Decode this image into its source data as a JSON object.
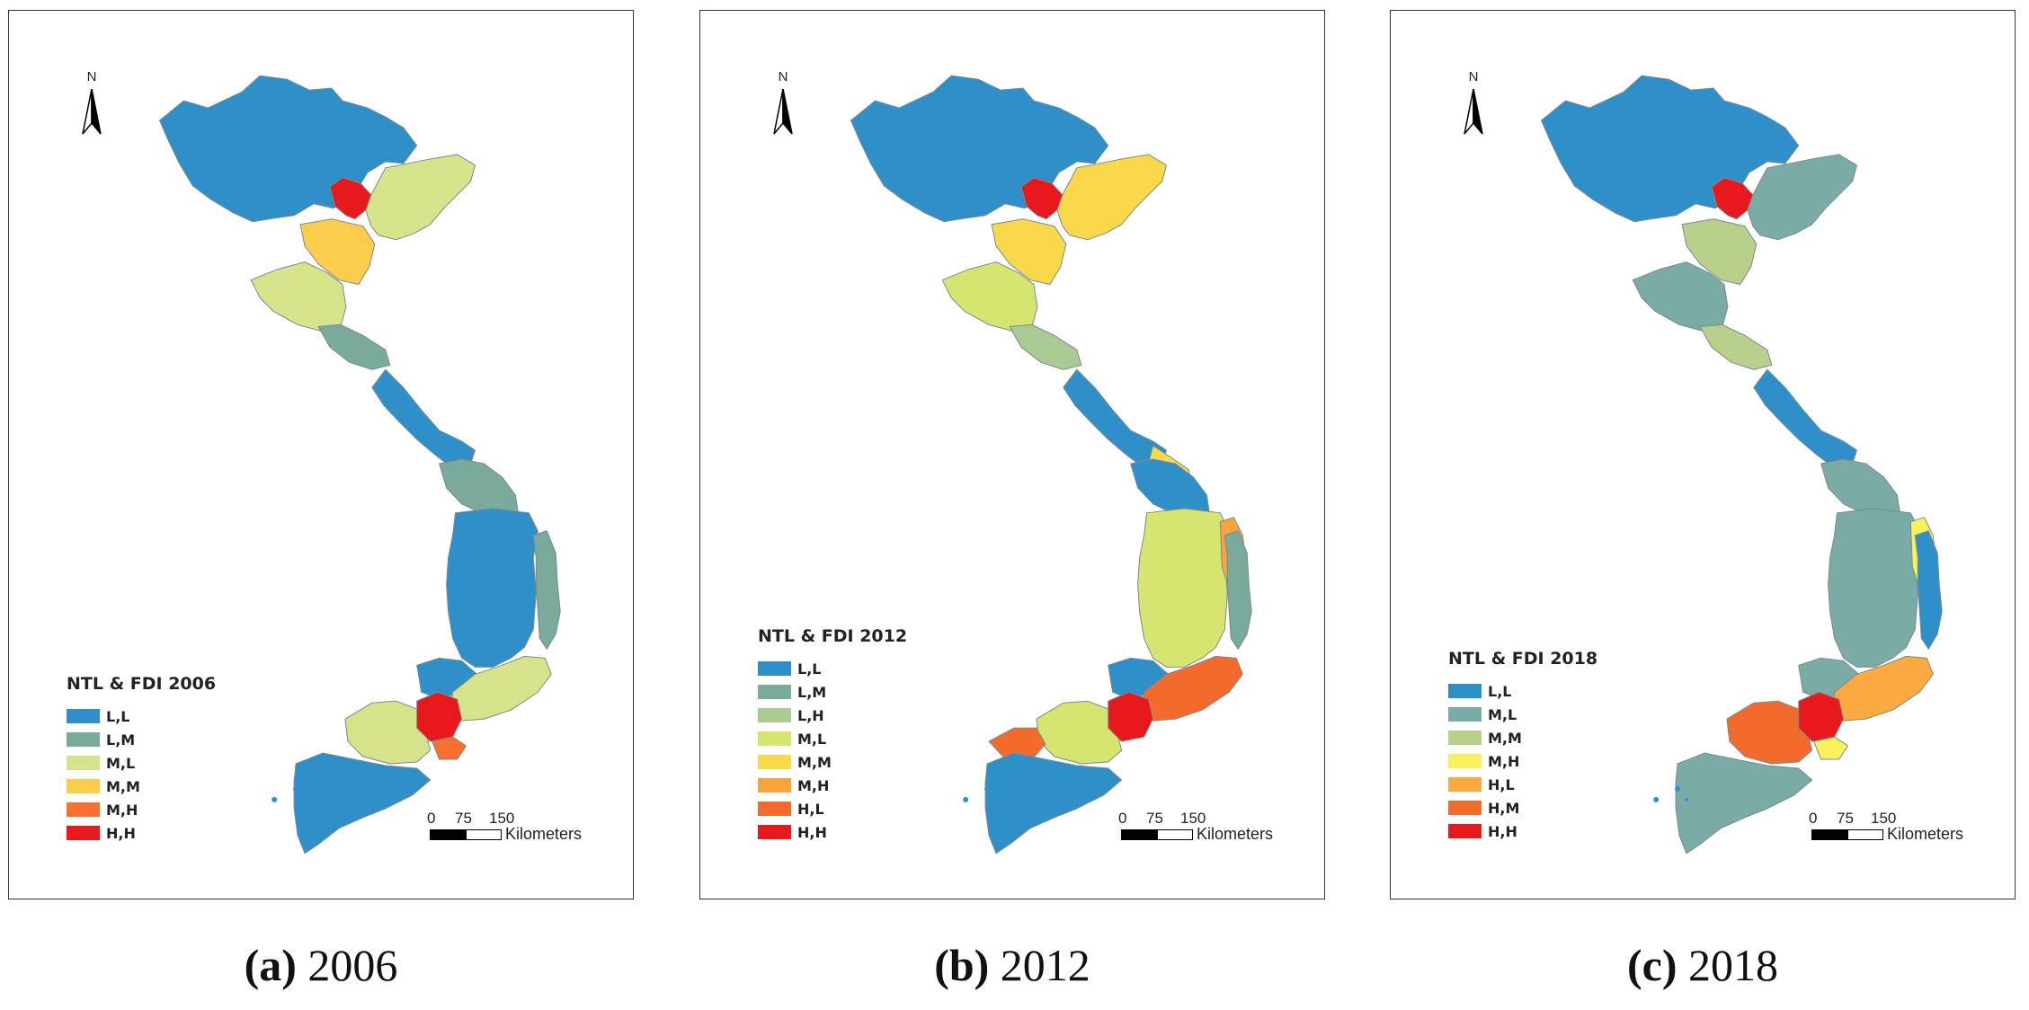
{
  "panels": [
    {
      "legend_title": "NTL & FDI  2006",
      "legend": [
        {
          "label": "L,L",
          "color": "#2f8fc9"
        },
        {
          "label": "L,M",
          "color": "#79aa9c"
        },
        {
          "label": "M,L",
          "color": "#d6e38a"
        },
        {
          "label": "M,M",
          "color": "#fccd4c"
        },
        {
          "label": "M,H",
          "color": "#f7702f"
        },
        {
          "label": "H,H",
          "color": "#e8191c"
        }
      ],
      "north_label": "N",
      "scale_ticks": [
        "0",
        "75",
        "150"
      ],
      "scale_unit": "Kilometers",
      "caption_letter": "(a)",
      "caption_year": " 2006",
      "regions": {
        "north_mountains": "L,L",
        "hanoi": "H,H",
        "red_river_delta": "M,L",
        "thanh_hoa": "M,M",
        "nghe_an": "M,L",
        "ha_tinh": "L,M",
        "north_central_coast": "L,L",
        "da_nang_quang_nam": "L,M",
        "central_highlands": "L,L",
        "south_central_coast": "L,M",
        "southeast_east": "M,L",
        "southeast_north": "L,L",
        "hcmc": "H,H",
        "southeast_coast": "M,H",
        "mekong_upper": "M,L",
        "mekong_lower": "L,L"
      }
    },
    {
      "legend_title": "NTL & FDI  2012",
      "legend": [
        {
          "label": "L,L",
          "color": "#2f8fc9"
        },
        {
          "label": "L,M",
          "color": "#79aa9c"
        },
        {
          "label": "L,H",
          "color": "#a9cb93"
        },
        {
          "label": "M,L",
          "color": "#d6e570"
        },
        {
          "label": "M,M",
          "color": "#fad84c"
        },
        {
          "label": "M,H",
          "color": "#f9a33c"
        },
        {
          "label": "H,L",
          "color": "#f26a2c"
        },
        {
          "label": "H,H",
          "color": "#e8191c"
        }
      ],
      "north_label": "N",
      "scale_ticks": [
        "0",
        "75",
        "150"
      ],
      "scale_unit": "Kilometers",
      "caption_letter": "(b)",
      "caption_year": " 2012",
      "regions": {
        "north_mountains": "L,L",
        "hanoi": "H,H",
        "red_river_delta": "M,M",
        "thanh_hoa": "M,M",
        "nghe_an": "M,L",
        "ha_tinh": "L,H",
        "north_central_coast": "L,L",
        "quang_tri_hue": "M,M",
        "da_nang_quang_nam": "L,L",
        "binh_dinh_coast": "M,H",
        "central_highlands": "M,L",
        "south_central_coast": "L,M",
        "southeast_east": "H,L",
        "southeast_north": "L,L",
        "hcmc": "H,H",
        "mekong_upper": "M,L",
        "kien_giang": "H,L",
        "mekong_lower": "L,L"
      }
    },
    {
      "legend_title": "NTL & FDI  2018",
      "legend": [
        {
          "label": "L,L",
          "color": "#2f8fc9"
        },
        {
          "label": "M,L",
          "color": "#7aaba5"
        },
        {
          "label": "M,M",
          "color": "#b8d08c"
        },
        {
          "label": "M,H",
          "color": "#f7f25c"
        },
        {
          "label": "H,L",
          "color": "#fbaa42"
        },
        {
          "label": "H,M",
          "color": "#f26a2c"
        },
        {
          "label": "H,H",
          "color": "#e8191c"
        }
      ],
      "north_label": "N",
      "scale_ticks": [
        "0",
        "75",
        "150"
      ],
      "scale_unit": "Kilometers",
      "caption_letter": "(c)",
      "caption_year": " 2018",
      "regions": {
        "north_mountains": "L,L",
        "hanoi": "H,H",
        "red_river_delta": "M,L",
        "thanh_hoa": "M,M",
        "nghe_an": "M,L",
        "ha_tinh": "M,M",
        "north_central_coast": "L,L",
        "da_nang_quang_nam": "M,L",
        "central_highlands": "M,L",
        "binh_dinh_coast": "M,H",
        "south_central_coast": "L,L",
        "southeast_east": "H,L",
        "southeast_north": "M,L",
        "hcmc": "H,H",
        "southeast_coast": "M,H",
        "mekong_upper": "H,M",
        "mekong_lower": "M,L"
      }
    }
  ]
}
